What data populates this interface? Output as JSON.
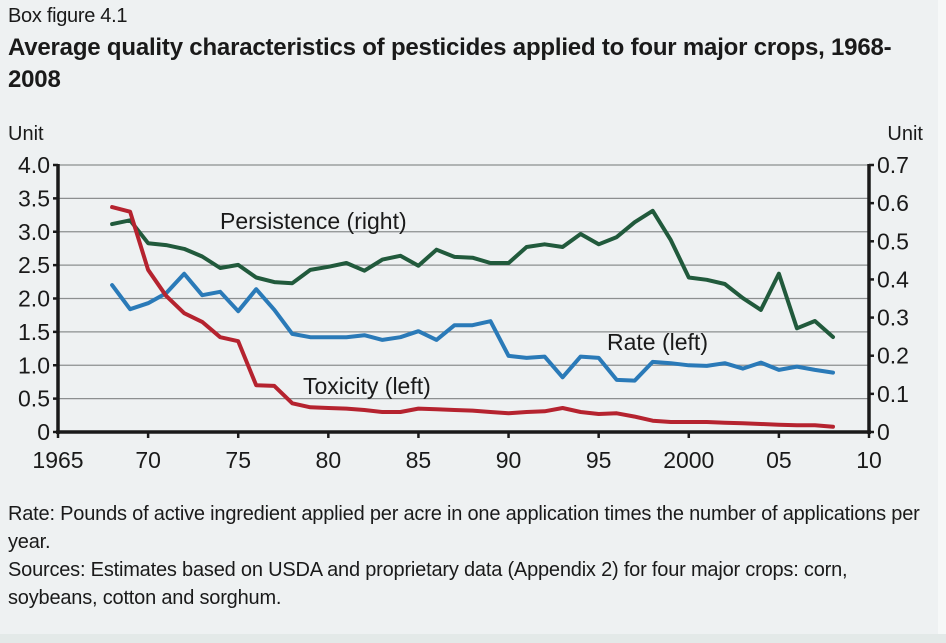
{
  "figure": {
    "label": "Box figure 4.1",
    "title": "Average quality characteristics of pesticides applied to four major crops, 1968-2008"
  },
  "notes": [
    "Rate: Pounds of active ingredient applied per acre in one application times the number of applications per year.",
    "Sources: Estimates based on USDA and proprietary data (Appendix 2) for four major crops: corn, soybeans, cotton and sorghum."
  ],
  "chart_data": {
    "type": "line",
    "title": "Average quality characteristics of pesticides applied to four major crops, 1968-2008",
    "xlabel": "",
    "ylabel_left": "Unit",
    "ylabel_right": "Unit",
    "xlim": [
      1965,
      2010
    ],
    "ylim_left": [
      0,
      4.0
    ],
    "ylim_right": [
      0,
      0.7
    ],
    "grid": true,
    "x_ticks": [
      1965,
      1970,
      1975,
      1980,
      1985,
      1990,
      1995,
      2000,
      2005,
      2010
    ],
    "x_tick_labels": [
      "1965",
      "70",
      "75",
      "80",
      "85",
      "90",
      "95",
      "2000",
      "05",
      "10"
    ],
    "y_left_ticks": [
      0,
      0.5,
      1.0,
      1.5,
      2.0,
      2.5,
      3.0,
      3.5,
      4.0
    ],
    "y_left_tick_labels": [
      "0",
      "0.5",
      "1.0",
      "1.5",
      "2.0",
      "2.5",
      "3.0",
      "3.5",
      "4.0"
    ],
    "y_right_ticks": [
      0,
      0.1,
      0.2,
      0.3,
      0.4,
      0.5,
      0.6,
      0.7
    ],
    "y_right_tick_labels": [
      "0",
      "0.1",
      "0.2",
      "0.3",
      "0.4",
      "0.5",
      "0.6",
      "0.7"
    ],
    "x": [
      1968,
      1969,
      1970,
      1971,
      1972,
      1973,
      1974,
      1975,
      1976,
      1977,
      1978,
      1979,
      1980,
      1981,
      1982,
      1983,
      1984,
      1985,
      1986,
      1987,
      1988,
      1989,
      1990,
      1991,
      1992,
      1993,
      1994,
      1995,
      1996,
      1997,
      1998,
      1999,
      2000,
      2001,
      2002,
      2003,
      2004,
      2005,
      2006,
      2007,
      2008
    ],
    "series": [
      {
        "name": "Persistence (right)",
        "axis": "right",
        "color": "#215a3c",
        "values": [
          0.545,
          0.555,
          0.495,
          0.49,
          0.48,
          0.46,
          0.43,
          0.438,
          0.405,
          0.393,
          0.39,
          0.425,
          0.433,
          0.443,
          0.423,
          0.452,
          0.462,
          0.436,
          0.478,
          0.459,
          0.457,
          0.443,
          0.443,
          0.485,
          0.492,
          0.485,
          0.519,
          0.492,
          0.511,
          0.55,
          0.58,
          0.503,
          0.405,
          0.399,
          0.388,
          0.351,
          0.32,
          0.415,
          0.272,
          0.291,
          0.249
        ]
      },
      {
        "name": "Rate (left)",
        "axis": "left",
        "color": "#2a7ab8",
        "values": [
          2.2,
          1.84,
          1.93,
          2.08,
          2.37,
          2.05,
          2.1,
          1.81,
          2.14,
          1.83,
          1.47,
          1.42,
          1.42,
          1.42,
          1.45,
          1.38,
          1.42,
          1.51,
          1.38,
          1.6,
          1.6,
          1.66,
          1.14,
          1.11,
          1.13,
          0.82,
          1.13,
          1.11,
          0.78,
          0.77,
          1.05,
          1.03,
          1.0,
          0.99,
          1.03,
          0.95,
          1.04,
          0.93,
          0.98,
          0.93,
          0.89
        ]
      },
      {
        "name": "Toxicity (left)",
        "axis": "left",
        "color": "#b5232f",
        "values": [
          3.37,
          3.3,
          2.43,
          2.04,
          1.78,
          1.65,
          1.42,
          1.36,
          0.7,
          0.69,
          0.43,
          0.37,
          0.36,
          0.35,
          0.33,
          0.3,
          0.3,
          0.35,
          0.34,
          0.33,
          0.32,
          0.3,
          0.28,
          0.3,
          0.31,
          0.36,
          0.3,
          0.27,
          0.28,
          0.23,
          0.17,
          0.15,
          0.15,
          0.15,
          0.14,
          0.13,
          0.12,
          0.11,
          0.1,
          0.1,
          0.08
        ]
      }
    ]
  }
}
